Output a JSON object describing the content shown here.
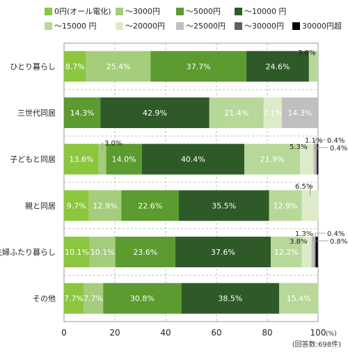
{
  "legend": [
    {
      "label": "0円(オール電化)",
      "color": "#8cc63f"
    },
    {
      "label": "～3000円",
      "color": "#a5cd7c"
    },
    {
      "label": "～5000円",
      "color": "#5b9b2f"
    },
    {
      "label": "～10000 円",
      "color": "#2e5a27"
    },
    {
      "label": "～15000 円",
      "color": "#b8d89a"
    },
    {
      "label": "～20000円",
      "color": "#ddebc9"
    },
    {
      "label": "～25000円",
      "color": "#bfbfbf"
    },
    {
      "label": "～30000円",
      "color": "#5f5f5f"
    },
    {
      "label": "30000円超",
      "color": "#000000"
    }
  ],
  "chart_data": {
    "type": "bar",
    "orientation": "horizontal-stacked",
    "categories": [
      "ひとり暮らし",
      "三世代同居",
      "子どもと同居",
      "親と同居",
      "夫婦ふたり暮らし",
      "その他"
    ],
    "series": [
      {
        "name": "0円(オール電化)",
        "values": [
          8.7,
          0,
          13.6,
          9.7,
          10.1,
          7.7
        ],
        "labels": [
          "8.7%",
          "",
          "13.6%",
          "9.7%",
          "10.1%",
          "7.7%"
        ]
      },
      {
        "name": "～3000円",
        "values": [
          25.4,
          0,
          3.0,
          12.9,
          10.1,
          7.7
        ],
        "labels": [
          "25.4%",
          "",
          "",
          "12.9%",
          "10.1%",
          "7.7%"
        ]
      },
      {
        "name": "～5000円",
        "values": [
          37.7,
          14.3,
          14.0,
          22.6,
          23.6,
          30.8
        ],
        "labels": [
          "37.7%",
          "14.3%",
          "14.0%",
          "22.6%",
          "23.6%",
          "30.8%"
        ]
      },
      {
        "name": "～10000 円",
        "values": [
          24.6,
          42.9,
          40.4,
          35.5,
          37.6,
          38.5
        ],
        "labels": [
          "24.6%",
          "42.9%",
          "40.4%",
          "35.5%",
          "37.6%",
          "38.5%"
        ]
      },
      {
        "name": "～15000 円",
        "values": [
          3.6,
          21.4,
          21.9,
          12.9,
          12.2,
          15.4
        ],
        "labels": [
          "",
          "21.4%",
          "21.9%",
          "12.9%",
          "12.2%",
          "15.4%"
        ]
      },
      {
        "name": "～20000円",
        "values": [
          0,
          7.1,
          5.3,
          6.5,
          3.8,
          0
        ],
        "labels": [
          "",
          "7.1%",
          "",
          "",
          "",
          ""
        ]
      },
      {
        "name": "～25000円",
        "values": [
          0,
          14.3,
          1.1,
          0,
          1.3,
          0
        ],
        "labels": [
          "",
          "14.3%",
          "",
          "",
          "",
          ""
        ]
      },
      {
        "name": "～30000円",
        "values": [
          0,
          0,
          0.4,
          0,
          0.4,
          0
        ],
        "labels": [
          "",
          "",
          "",
          "",
          "",
          ""
        ]
      },
      {
        "name": "30000円超",
        "values": [
          0,
          0,
          0.4,
          0,
          0.8,
          0
        ],
        "labels": [
          "",
          "",
          "",
          "",
          "",
          ""
        ]
      }
    ],
    "callouts": [
      {
        "row": 0,
        "series": 4,
        "text": "3.6%"
      },
      {
        "row": 2,
        "series": 1,
        "text": "3.0%"
      },
      {
        "row": 2,
        "series": 5,
        "text": "5.3%"
      },
      {
        "row": 2,
        "series": 6,
        "text": "1.1%"
      },
      {
        "row": 2,
        "series": 7,
        "text": "0.4%"
      },
      {
        "row": 2,
        "series": 8,
        "text": "0.4%"
      },
      {
        "row": 3,
        "series": 5,
        "text": "6.5%"
      },
      {
        "row": 4,
        "series": 5,
        "text": "3.8%"
      },
      {
        "row": 4,
        "series": 6,
        "text": "1.3%"
      },
      {
        "row": 4,
        "series": 7,
        "text": "0.4%"
      },
      {
        "row": 4,
        "series": 8,
        "text": "0.8%"
      }
    ],
    "xlim": [
      0,
      100
    ],
    "xticks": [
      "0",
      "20",
      "40",
      "60",
      "80",
      "100"
    ],
    "x_unit": "(%)",
    "note": "(回答数:698件)",
    "grid": true
  }
}
